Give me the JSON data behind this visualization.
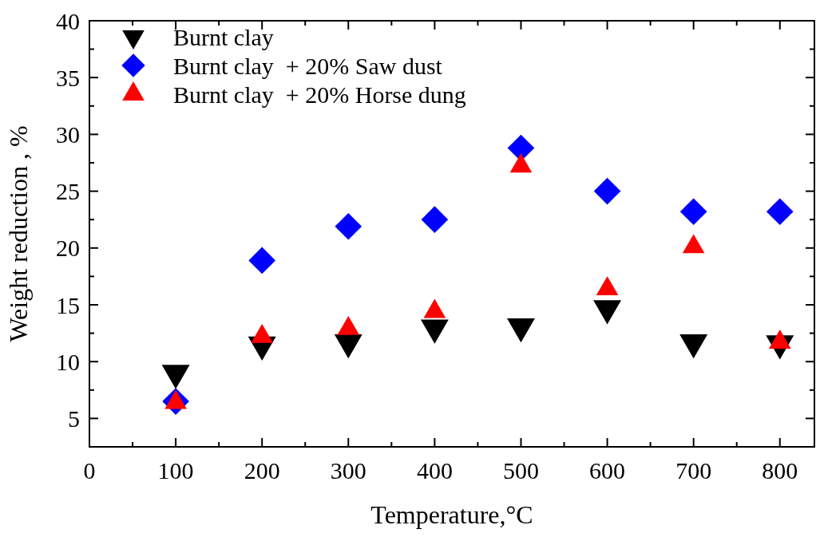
{
  "chart_data": {
    "type": "scatter",
    "xlabel": "Temperature,°C",
    "ylabel": "Weight reduction , %",
    "x": [
      100,
      200,
      300,
      400,
      500,
      600,
      700,
      800
    ],
    "series": [
      {
        "name": "Burnt clay",
        "color": "#000000",
        "marker": "triangle-down",
        "values": [
          9.0,
          11.5,
          11.7,
          13.0,
          13.1,
          14.7,
          11.7,
          11.6
        ]
      },
      {
        "name": "Burnt clay  + 20% Saw dust",
        "color": "#0000ff",
        "marker": "diamond",
        "values": [
          6.5,
          18.9,
          21.9,
          22.5,
          28.8,
          25.0,
          23.2,
          23.2
        ]
      },
      {
        "name": "Burnt clay  + 20% Horse dung",
        "color": "#ff0000",
        "marker": "triangle",
        "values": [
          6.4,
          12.2,
          12.9,
          14.4,
          27.2,
          16.4,
          20.1,
          11.7
        ]
      }
    ],
    "xlim": [
      0,
      840
    ],
    "ylim": [
      2.5,
      40
    ],
    "xticks": [
      0,
      {
        "value": 50,
        "label": null
      },
      100,
      {
        "value": 150,
        "label": null
      },
      200,
      {
        "value": 250,
        "label": null
      },
      300,
      {
        "value": 350,
        "label": null
      },
      400,
      {
        "value": 450,
        "label": null
      },
      500,
      {
        "value": 550,
        "label": null
      },
      600,
      {
        "value": 650,
        "label": null
      },
      700,
      {
        "value": 750,
        "label": null
      },
      800
    ],
    "yticks": [
      5,
      {
        "value": 7.5,
        "label": null
      },
      10,
      {
        "value": 12.5,
        "label": null
      },
      15,
      {
        "value": 17.5,
        "label": null
      },
      20,
      {
        "value": 22.5,
        "label": null
      },
      25,
      {
        "value": 27.5,
        "label": null
      },
      30,
      {
        "value": 32.5,
        "label": null
      },
      35,
      {
        "value": 37.5,
        "label": null
      },
      40
    ],
    "grid": false,
    "legend": "top left"
  }
}
